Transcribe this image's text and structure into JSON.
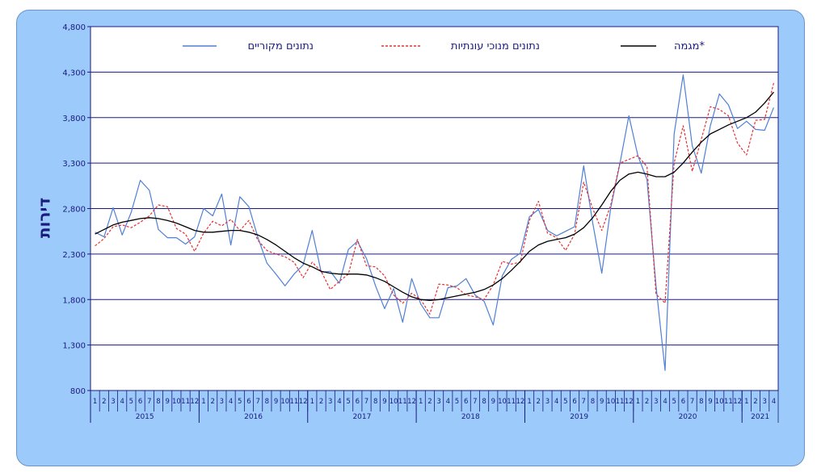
{
  "chart_data": {
    "type": "line",
    "ylabel": "דירות",
    "ylim": [
      800,
      4800
    ],
    "yticks": [
      800,
      1300,
      1800,
      2300,
      2800,
      3300,
      3800,
      4300,
      4800
    ],
    "ytick_labels": [
      "800",
      "1,300",
      "1,800",
      "2,300",
      "2,800",
      "3,300",
      "3,800",
      "4,300",
      "4,800"
    ],
    "month_labels": [
      "1",
      "2",
      "3",
      "4",
      "5",
      "6",
      "7",
      "8",
      "9",
      "10",
      "11",
      "12",
      "1",
      "2",
      "3",
      "4",
      "5",
      "6",
      "7",
      "8",
      "9",
      "10",
      "11",
      "12",
      "1",
      "2",
      "3",
      "4",
      "5",
      "6",
      "7",
      "8",
      "9",
      "10",
      "11",
      "12",
      "1",
      "2",
      "3",
      "4",
      "5",
      "6",
      "7",
      "8",
      "9",
      "10",
      "11",
      "12",
      "1",
      "2",
      "3",
      "4",
      "5",
      "6",
      "7",
      "8",
      "9",
      "10",
      "11",
      "12",
      "1",
      "2",
      "3",
      "4",
      "5",
      "6",
      "7",
      "8",
      "9",
      "10",
      "11",
      "12",
      "1",
      "2",
      "3",
      "4"
    ],
    "years": [
      {
        "label": "2015",
        "months": 12
      },
      {
        "label": "2016",
        "months": 12
      },
      {
        "label": "2017",
        "months": 12
      },
      {
        "label": "2018",
        "months": 12
      },
      {
        "label": "2019",
        "months": 12
      },
      {
        "label": "2020",
        "months": 12
      },
      {
        "label": "2021",
        "months": 4
      }
    ],
    "grid": true,
    "legend_position": "top",
    "series": [
      {
        "name": "נתונים מקוריים",
        "color": "#4f7fd6",
        "style": "solid",
        "values": [
          2540,
          2490,
          2810,
          2510,
          2760,
          3110,
          3000,
          2570,
          2480,
          2480,
          2410,
          2490,
          2800,
          2720,
          2960,
          2400,
          2930,
          2820,
          2480,
          2200,
          2080,
          1950,
          2080,
          2180,
          2560,
          2100,
          2110,
          1980,
          2350,
          2440,
          2250,
          1950,
          1700,
          1920,
          1550,
          2030,
          1750,
          1600,
          1600,
          1930,
          1950,
          2030,
          1850,
          1780,
          1520,
          2060,
          2240,
          2310,
          2710,
          2790,
          2560,
          2500,
          2550,
          2600,
          3270,
          2640,
          2090,
          2810,
          3290,
          3820,
          3380,
          3120,
          1950,
          1020,
          3620,
          4270,
          3490,
          3190,
          3710,
          4060,
          3940,
          3680,
          3760,
          3670,
          3660,
          3910
        ]
      },
      {
        "name": "נתונים מנוכי עונתיות",
        "color": "#e53030",
        "style": "dashed",
        "values": [
          2390,
          2470,
          2600,
          2620,
          2590,
          2650,
          2720,
          2840,
          2820,
          2580,
          2520,
          2330,
          2530,
          2660,
          2610,
          2680,
          2560,
          2670,
          2450,
          2340,
          2300,
          2270,
          2210,
          2040,
          2210,
          2110,
          1910,
          2000,
          2080,
          2460,
          2170,
          2160,
          2060,
          1850,
          1760,
          1870,
          1800,
          1640,
          1970,
          1960,
          1930,
          1850,
          1830,
          1800,
          1960,
          2220,
          2190,
          2210,
          2670,
          2880,
          2530,
          2480,
          2340,
          2520,
          3090,
          2800,
          2560,
          2840,
          3300,
          3340,
          3380,
          3260,
          1860,
          1760,
          3300,
          3710,
          3210,
          3560,
          3920,
          3890,
          3820,
          3520,
          3390,
          3770,
          3780,
          4180
        ]
      },
      {
        "name": "מגמה*",
        "color": "#000000",
        "style": "solid",
        "values": [
          2520,
          2570,
          2620,
          2650,
          2670,
          2690,
          2700,
          2690,
          2670,
          2640,
          2600,
          2560,
          2540,
          2540,
          2550,
          2560,
          2560,
          2540,
          2510,
          2460,
          2400,
          2330,
          2260,
          2200,
          2160,
          2110,
          2090,
          2080,
          2080,
          2080,
          2070,
          2040,
          2000,
          1940,
          1880,
          1830,
          1800,
          1790,
          1800,
          1820,
          1840,
          1860,
          1880,
          1910,
          1960,
          2030,
          2120,
          2220,
          2330,
          2400,
          2440,
          2460,
          2480,
          2520,
          2590,
          2700,
          2840,
          2990,
          3110,
          3180,
          3200,
          3180,
          3150,
          3150,
          3200,
          3300,
          3420,
          3530,
          3620,
          3670,
          3720,
          3760,
          3800,
          3860,
          3960,
          4080
        ]
      }
    ]
  }
}
